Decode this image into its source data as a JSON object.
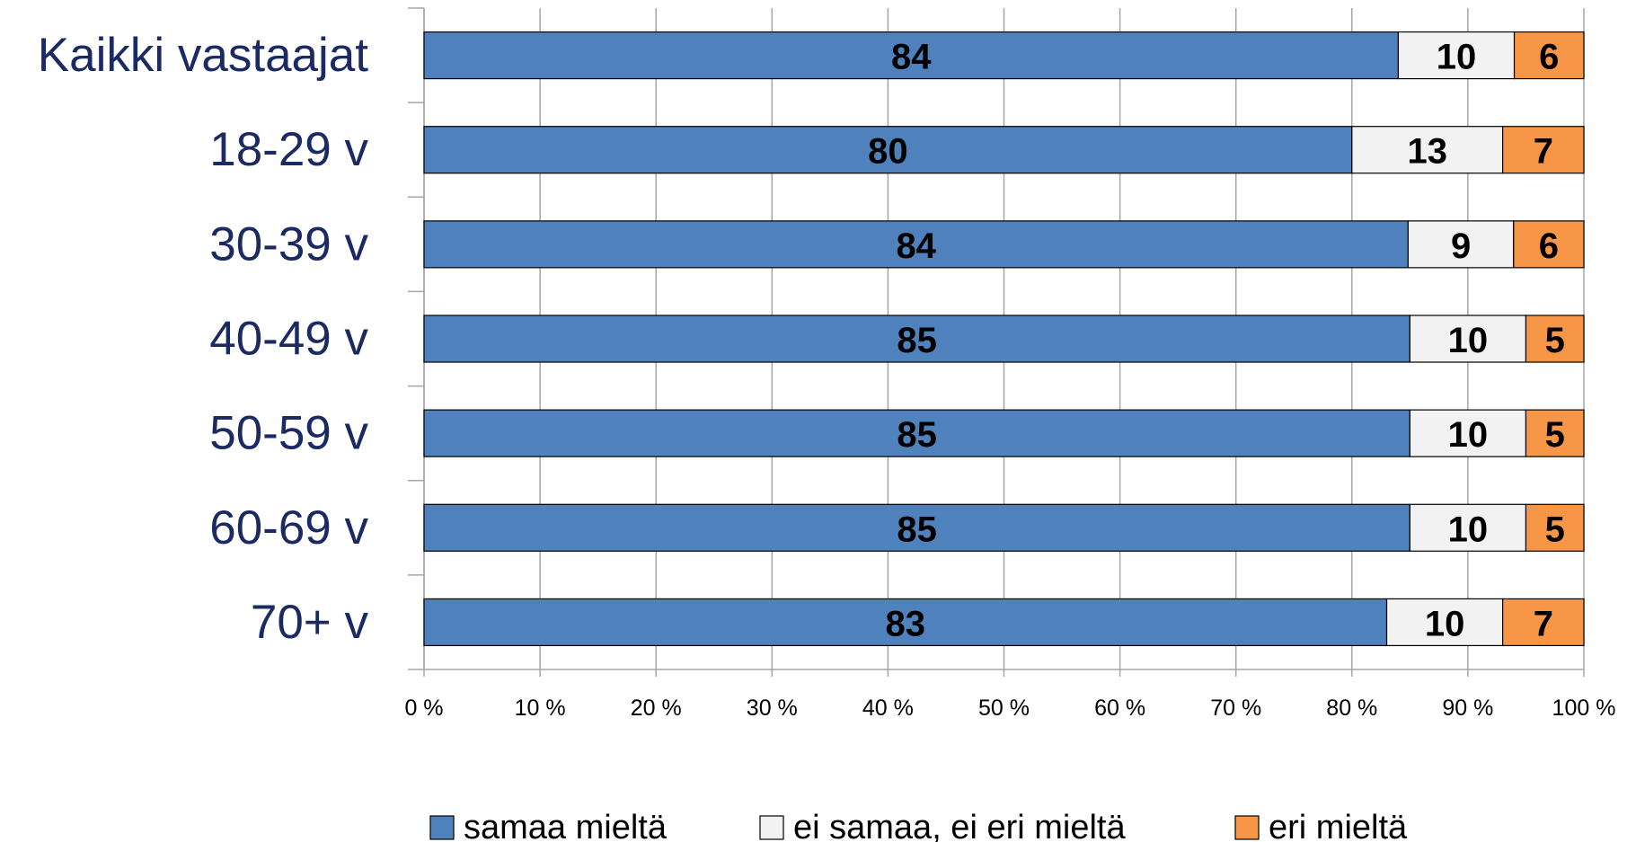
{
  "chart_data": {
    "type": "bar",
    "orientation": "horizontal",
    "stacked": "percent",
    "categories": [
      "Kaikki vastaajat",
      "18-29 v",
      "30-39 v",
      "40-49 v",
      "50-59 v",
      "60-69 v",
      "70+ v"
    ],
    "series": [
      {
        "name": "samaa mieltä",
        "color": "#4f81bd",
        "values": [
          84,
          80,
          84,
          85,
          85,
          85,
          83
        ]
      },
      {
        "name": "ei samaa, ei eri mieltä",
        "color": "#f2f2f2",
        "values": [
          10,
          13,
          9,
          10,
          10,
          10,
          10
        ]
      },
      {
        "name": "eri mieltä",
        "color": "#f79646",
        "values": [
          6,
          7,
          6,
          5,
          5,
          5,
          7
        ]
      }
    ],
    "xlim": [
      0,
      100
    ],
    "xticks": [
      {
        "value": 0,
        "label": "0 %"
      },
      {
        "value": 10,
        "label": "10 %"
      },
      {
        "value": 20,
        "label": "20 %"
      },
      {
        "value": 30,
        "label": "30 %"
      },
      {
        "value": 40,
        "label": "40 %"
      },
      {
        "value": 50,
        "label": "50 %"
      },
      {
        "value": 60,
        "label": "60 %"
      },
      {
        "value": 70,
        "label": "70 %"
      },
      {
        "value": 80,
        "label": "80 %"
      },
      {
        "value": 90,
        "label": "90 %"
      },
      {
        "value": 100,
        "label": "100 %"
      }
    ],
    "grid": true,
    "legend": "bottom"
  }
}
